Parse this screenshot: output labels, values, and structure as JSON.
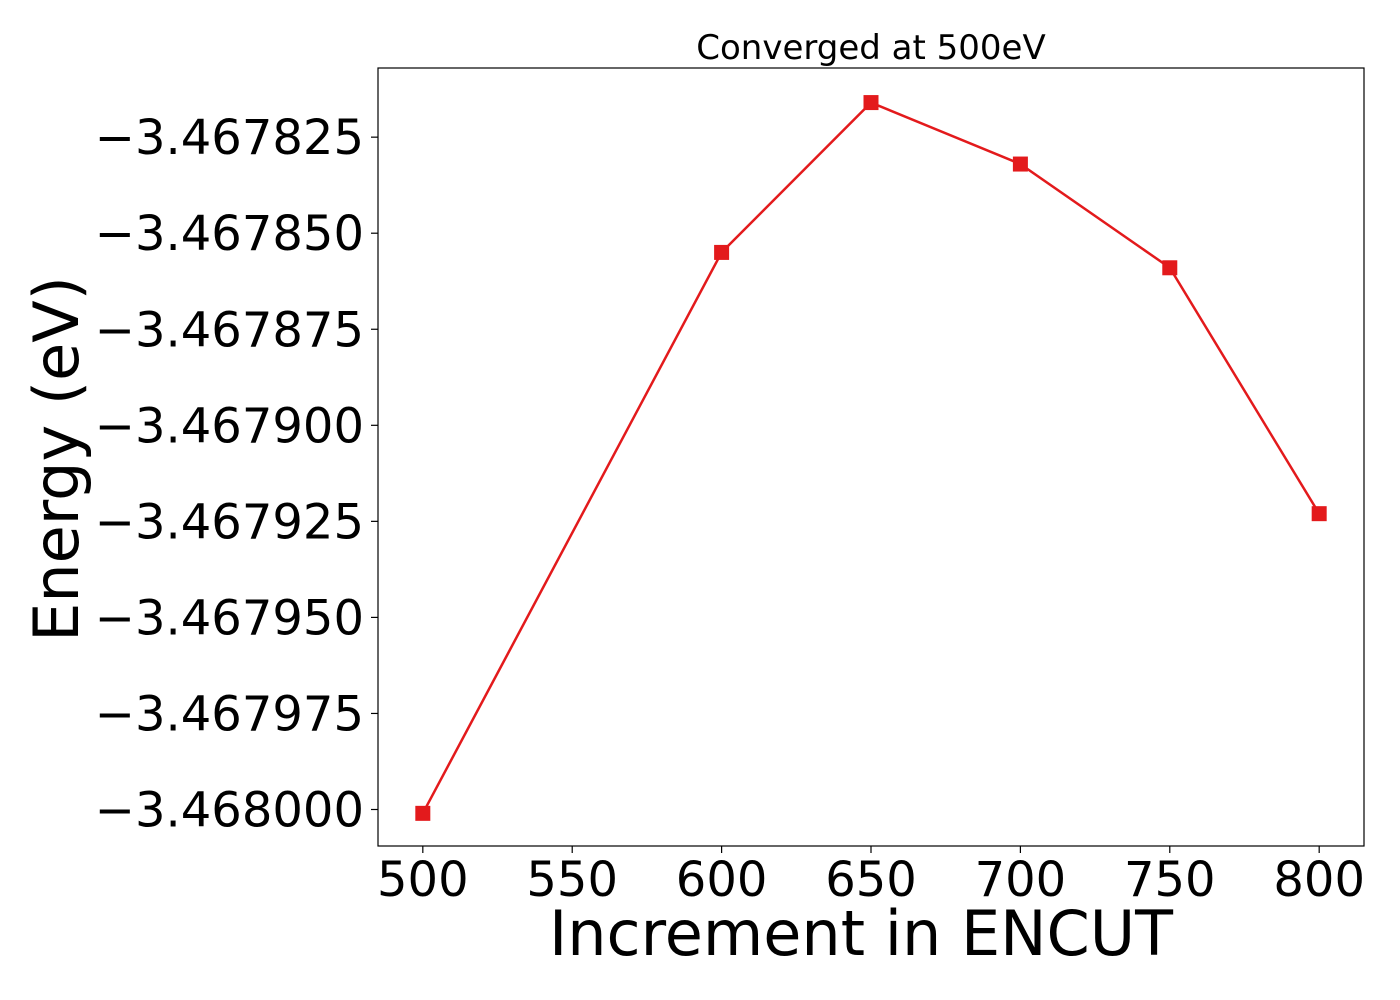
{
  "chart_data": {
    "type": "line",
    "title": "Converged at 500eV",
    "xlabel": "Increment in ENCUT",
    "ylabel": "Energy (eV)",
    "x": [
      500,
      600,
      650,
      700,
      750,
      800
    ],
    "series": [
      {
        "color": "#e31a1c",
        "marker": "square",
        "values": [
          -3.468001,
          -3.467855,
          -3.467816,
          -3.467832,
          -3.467859,
          -3.467923
        ]
      }
    ],
    "xticks": [
      500,
      550,
      600,
      650,
      700,
      750,
      800
    ],
    "xtick_labels": [
      "500",
      "550",
      "600",
      "650",
      "700",
      "750",
      "800"
    ],
    "yticks": [
      -3.467825,
      -3.46785,
      -3.467875,
      -3.4679,
      -3.467925,
      -3.46795,
      -3.467975,
      -3.468
    ],
    "ytick_labels": [
      "−3.467825",
      "−3.467850",
      "−3.467875",
      "−3.467900",
      "−3.467925",
      "−3.467950",
      "−3.467975",
      "−3.468000"
    ],
    "xlim": [
      485,
      815
    ],
    "ylim": [
      -3.4680095,
      -3.467807
    ],
    "grid": false,
    "legend": "none"
  }
}
